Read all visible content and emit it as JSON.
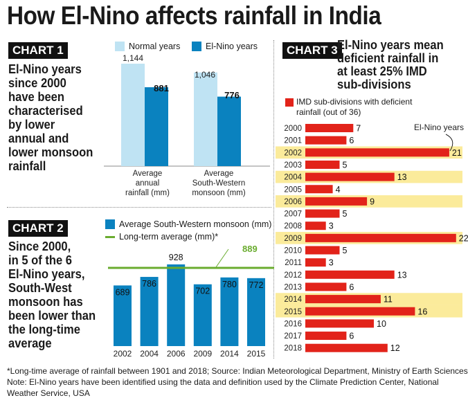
{
  "title": "How El-Nino affects rainfall in India",
  "colors": {
    "normal": "#bfe3f3",
    "elnino": "#0a82bf",
    "longterm": "#6aac2f",
    "deficit": "#e2231a",
    "highlight": "#fbeb9b"
  },
  "chart1": {
    "badge": "CHART 1",
    "description": [
      "El-Nino years",
      "since 2000",
      "have been",
      "characterised",
      "by lower",
      "annual and",
      "lower monsoon",
      "rainfall"
    ],
    "legend": {
      "normal": "Normal years",
      "elnino": "El-Nino years"
    },
    "groups": [
      {
        "label": [
          "Average",
          "annual",
          "rainfall (mm)"
        ],
        "normal": "1,144",
        "elnino": "881"
      },
      {
        "label": [
          "Average",
          "South-Western",
          "monsoon (mm)"
        ],
        "normal": "1,046",
        "elnino": "776"
      }
    ]
  },
  "chart2": {
    "badge": "CHART 2",
    "description": [
      "Since 2000,",
      "in 5 of the 6",
      "El-Nino years,",
      "South-West",
      "monsoon has",
      "been lower than",
      "the long-time",
      "average"
    ],
    "legend": {
      "bars": "Average South-Western monsoon (mm)",
      "line": "Long-term average (mm)*"
    },
    "long_term_label": "889"
  },
  "chart3": {
    "badge": "CHART 3",
    "title": [
      "El-Nino years mean",
      "deficient rainfall in",
      "at least 25% IMD",
      "sub-divisions"
    ],
    "legend": [
      "IMD sub-divisions with deficient",
      "rainfall (out of 36)"
    ],
    "annotation": "El-Nino years"
  },
  "chart_data": [
    {
      "type": "bar",
      "categories": [
        "Average annual rainfall (mm)",
        "Average South-Western monsoon (mm)"
      ],
      "series": [
        {
          "name": "Normal years",
          "values": [
            1144,
            1046
          ]
        },
        {
          "name": "El-Nino years",
          "values": [
            881,
            776
          ]
        }
      ]
    },
    {
      "type": "bar",
      "categories": [
        "2002",
        "2004",
        "2006",
        "2009",
        "2014",
        "2015"
      ],
      "series": [
        {
          "name": "Average South-Western monsoon (mm)",
          "values": [
            689,
            786,
            928,
            702,
            780,
            772
          ]
        },
        {
          "name": "Long-term average (mm)*",
          "values": [
            889,
            889,
            889,
            889,
            889,
            889
          ]
        }
      ],
      "ylim": [
        0,
        940
      ]
    },
    {
      "type": "bar",
      "orientation": "horizontal",
      "categories": [
        "2000",
        "2001",
        "2002",
        "2003",
        "2004",
        "2005",
        "2006",
        "2007",
        "2008",
        "2009",
        "2010",
        "2011",
        "2012",
        "2013",
        "2014",
        "2015",
        "2016",
        "2017",
        "2018"
      ],
      "series": [
        {
          "name": "IMD sub-divisions with deficient rainfall (out of 36)",
          "values": [
            7,
            6,
            21,
            5,
            13,
            4,
            9,
            5,
            3,
            22,
            5,
            3,
            13,
            6,
            11,
            16,
            10,
            6,
            12
          ]
        }
      ],
      "highlighted": [
        "2002",
        "2004",
        "2006",
        "2009",
        "2014",
        "2015"
      ]
    }
  ],
  "footnotes": [
    "*Long-time average of rainfall between 1901 and 2018; Source: Indian Meteorological Department, Ministry of Earth Sciences",
    "Note: El-Nino years have been identified using the data and definition used by the Climate Prediction Center, National",
    "Weather Service, USA"
  ]
}
